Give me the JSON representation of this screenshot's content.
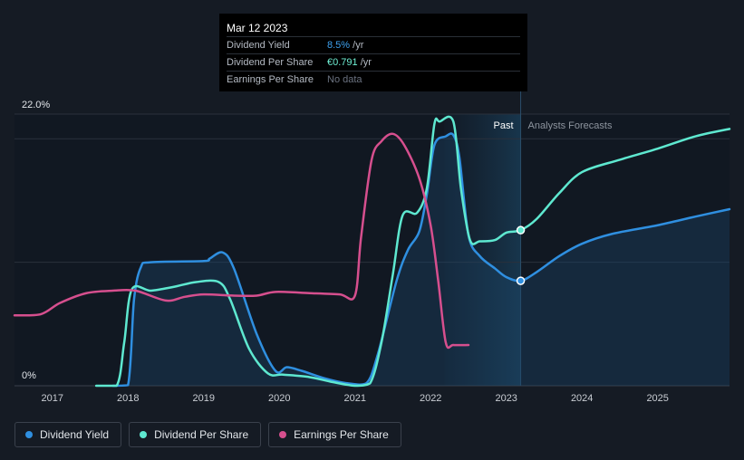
{
  "tooltip": {
    "date": "Mar 12 2023",
    "rows": [
      {
        "label": "Dividend Yield",
        "value": "8.5%",
        "unit": " /yr",
        "color": "#3ea2f0"
      },
      {
        "label": "Dividend Per Share",
        "value": "€0.791",
        "unit": " /yr",
        "color": "#6ff0d4"
      },
      {
        "label": "Earnings Per Share",
        "value": "No data",
        "unit": "",
        "color": "#6b7280"
      }
    ]
  },
  "labels": {
    "past": "Past",
    "forecast": "Analysts Forecasts"
  },
  "legend": [
    {
      "label": "Dividend Yield",
      "color": "#2f8fe0"
    },
    {
      "label": "Dividend Per Share",
      "color": "#5ee8d0"
    },
    {
      "label": "Earnings Per Share",
      "color": "#d64f8e"
    }
  ],
  "chart_data": {
    "type": "line",
    "y_unit": "%",
    "ylim": [
      0,
      22
    ],
    "y_ticks": [
      "22.0%",
      "0%"
    ],
    "x_ticks": [
      "2017",
      "2018",
      "2019",
      "2020",
      "2021",
      "2022",
      "2023",
      "2024",
      "2025"
    ],
    "xlim": [
      2016.5,
      2025.95
    ],
    "past_end": 2023.19,
    "shade_start": 2022.18,
    "series": [
      {
        "name": "Dividend Yield",
        "color": "#2f8fe0",
        "area": true,
        "points": [
          [
            2017.8,
            0
          ],
          [
            2018.0,
            0.05
          ],
          [
            2018.08,
            7.0
          ],
          [
            2018.17,
            9.6
          ],
          [
            2018.3,
            10.0
          ],
          [
            2019.0,
            10.1
          ],
          [
            2019.08,
            10.3
          ],
          [
            2019.25,
            10.8
          ],
          [
            2019.4,
            9.5
          ],
          [
            2019.7,
            4.2
          ],
          [
            2019.95,
            1.2
          ],
          [
            2020.1,
            1.5
          ],
          [
            2020.3,
            1.2
          ],
          [
            2020.6,
            0.6
          ],
          [
            2020.9,
            0.2
          ],
          [
            2021.15,
            0.2
          ],
          [
            2021.3,
            2.5
          ],
          [
            2021.55,
            8.5
          ],
          [
            2021.7,
            11.0
          ],
          [
            2021.85,
            12.5
          ],
          [
            2021.95,
            15.5
          ],
          [
            2022.05,
            19.5
          ],
          [
            2022.2,
            20.2
          ],
          [
            2022.3,
            20.3
          ],
          [
            2022.38,
            18.5
          ],
          [
            2022.5,
            12.2
          ],
          [
            2022.65,
            10.5
          ],
          [
            2022.85,
            9.5
          ],
          [
            2023.0,
            8.8
          ],
          [
            2023.19,
            8.5
          ],
          [
            2023.4,
            9.2
          ],
          [
            2023.7,
            10.5
          ],
          [
            2024.0,
            11.5
          ],
          [
            2024.4,
            12.3
          ],
          [
            2025.0,
            13.0
          ],
          [
            2025.5,
            13.7
          ],
          [
            2025.95,
            14.3
          ]
        ]
      },
      {
        "name": "Dividend Per Share",
        "color": "#5ee8d0",
        "area": false,
        "points": [
          [
            2017.58,
            0
          ],
          [
            2017.85,
            0
          ],
          [
            2017.95,
            3.5
          ],
          [
            2018.05,
            7.8
          ],
          [
            2018.3,
            7.7
          ],
          [
            2018.6,
            8.0
          ],
          [
            2018.9,
            8.4
          ],
          [
            2019.2,
            8.4
          ],
          [
            2019.35,
            7.0
          ],
          [
            2019.6,
            3.0
          ],
          [
            2019.85,
            1.0
          ],
          [
            2020.05,
            0.9
          ],
          [
            2020.4,
            0.7
          ],
          [
            2020.7,
            0.3
          ],
          [
            2021.0,
            0.0
          ],
          [
            2021.2,
            0.2
          ],
          [
            2021.35,
            3.5
          ],
          [
            2021.5,
            9.0
          ],
          [
            2021.63,
            13.8
          ],
          [
            2021.82,
            14.0
          ],
          [
            2021.95,
            16.0
          ],
          [
            2022.05,
            21.2
          ],
          [
            2022.12,
            21.4
          ],
          [
            2022.3,
            21.4
          ],
          [
            2022.4,
            16.0
          ],
          [
            2022.52,
            11.8
          ],
          [
            2022.65,
            11.7
          ],
          [
            2022.85,
            11.8
          ],
          [
            2023.0,
            12.4
          ],
          [
            2023.19,
            12.6
          ],
          [
            2023.4,
            13.5
          ],
          [
            2023.7,
            15.6
          ],
          [
            2024.0,
            17.3
          ],
          [
            2024.5,
            18.3
          ],
          [
            2025.0,
            19.2
          ],
          [
            2025.5,
            20.2
          ],
          [
            2025.95,
            20.8
          ]
        ]
      },
      {
        "name": "Earnings Per Share",
        "color": "#d64f8e",
        "area": false,
        "points": [
          [
            2016.5,
            5.7
          ],
          [
            2016.85,
            5.8
          ],
          [
            2017.1,
            6.7
          ],
          [
            2017.45,
            7.5
          ],
          [
            2017.8,
            7.7
          ],
          [
            2018.1,
            7.7
          ],
          [
            2018.5,
            6.9
          ],
          [
            2018.75,
            7.2
          ],
          [
            2019.0,
            7.4
          ],
          [
            2019.4,
            7.3
          ],
          [
            2019.7,
            7.3
          ],
          [
            2019.95,
            7.6
          ],
          [
            2020.4,
            7.5
          ],
          [
            2020.8,
            7.4
          ],
          [
            2021.0,
            7.3
          ],
          [
            2021.08,
            12.0
          ],
          [
            2021.22,
            18.3
          ],
          [
            2021.35,
            19.8
          ],
          [
            2021.5,
            20.4
          ],
          [
            2021.65,
            19.5
          ],
          [
            2021.85,
            16.8
          ],
          [
            2022.0,
            13.0
          ],
          [
            2022.1,
            8.5
          ],
          [
            2022.2,
            3.5
          ],
          [
            2022.3,
            3.3
          ],
          [
            2022.5,
            3.3
          ]
        ]
      }
    ],
    "markers": [
      {
        "series": "Dividend Per Share",
        "x": 2023.19,
        "y": 12.6
      },
      {
        "series": "Dividend Yield",
        "x": 2023.19,
        "y": 8.5
      }
    ]
  }
}
